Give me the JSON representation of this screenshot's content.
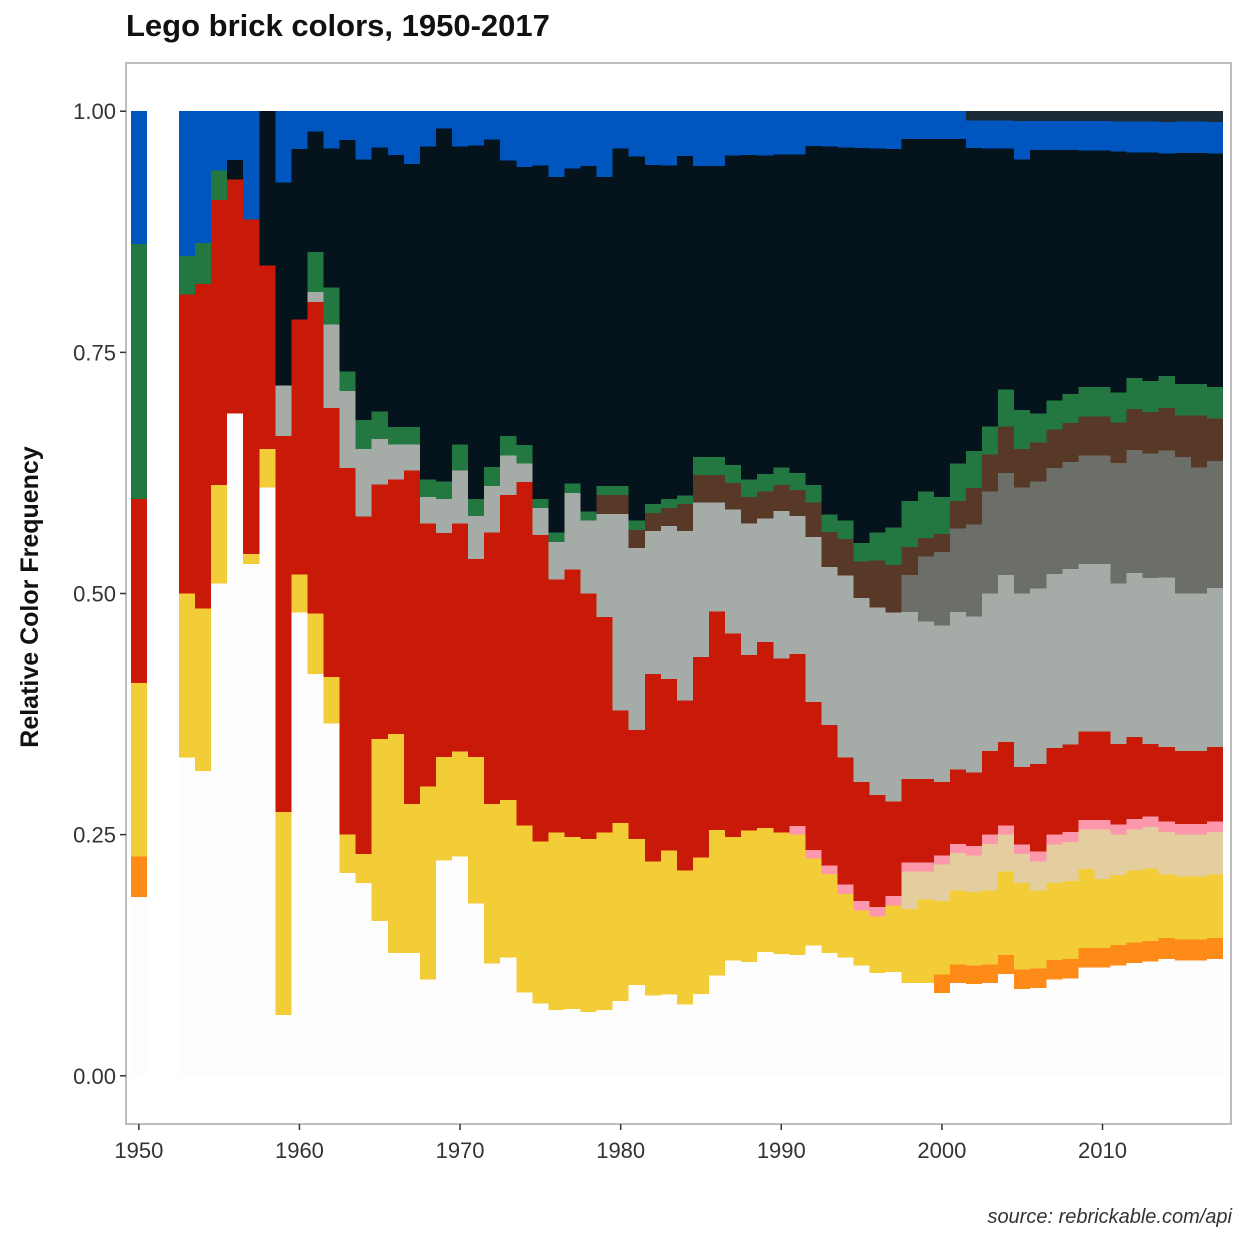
{
  "chart_data": {
    "type": "area",
    "subtype": "stacked step area, normalized to 1",
    "title": "Lego brick colors, 1950-2017",
    "caption": "source: rebrickable.com/api",
    "xlabel": "",
    "ylabel": "Relative Color Frequency",
    "xlim": [
      1949.2,
      2018
    ],
    "ylim": [
      -0.05,
      1.05
    ],
    "x_ticks": [
      1950,
      1960,
      1970,
      1980,
      1990,
      2000,
      2010
    ],
    "y_ticks": [
      0.0,
      0.25,
      0.5,
      0.75,
      1.0
    ],
    "y_tick_labels": [
      "0.00",
      "0.25",
      "0.50",
      "0.75",
      "1.00"
    ],
    "grid": false,
    "legend": "none",
    "x": [
      1950,
      1953,
      1954,
      1955,
      1956,
      1957,
      1958,
      1959,
      1960,
      1961,
      1962,
      1963,
      1964,
      1965,
      1966,
      1967,
      1968,
      1969,
      1970,
      1971,
      1972,
      1973,
      1974,
      1975,
      1976,
      1977,
      1978,
      1979,
      1980,
      1981,
      1982,
      1983,
      1984,
      1985,
      1986,
      1987,
      1988,
      1989,
      1990,
      1991,
      1992,
      1993,
      1994,
      1995,
      1996,
      1997,
      1998,
      1999,
      2000,
      2001,
      2002,
      2003,
      2004,
      2005,
      2006,
      2007,
      2008,
      2009,
      2010,
      2011,
      2012,
      2013,
      2014,
      2015,
      2016,
      2017
    ],
    "series": [
      {
        "color": "#FDFDFD",
        "values": [
          0.175,
          0.33,
          0.3,
          0.5,
          0.68,
          0.52,
          0.61,
          0.06,
          0.49,
          0.4,
          0.38,
          0.21,
          0.2,
          0.17,
          0.14,
          0.14,
          0.11,
          0.25,
          0.25,
          0.2,
          0.12,
          0.12,
          0.09,
          0.08,
          0.07,
          0.07,
          0.07,
          0.07,
          0.08,
          0.1,
          0.09,
          0.09,
          0.08,
          0.09,
          0.11,
          0.13,
          0.13,
          0.14,
          0.14,
          0.14,
          0.15,
          0.14,
          0.13,
          0.12,
          0.11,
          0.11,
          0.1,
          0.1,
          0.09,
          0.1,
          0.1,
          0.1,
          0.11,
          0.09,
          0.09,
          0.1,
          0.1,
          0.11,
          0.11,
          0.11,
          0.11,
          0.11,
          0.11,
          0.11,
          0.11,
          0.11
        ]
      },
      {
        "color": "#FE8A18",
        "values": [
          0.04,
          0,
          0,
          0,
          0,
          0,
          0,
          0,
          0,
          0,
          0,
          0,
          0,
          0,
          0,
          0,
          0,
          0,
          0,
          0,
          0,
          0,
          0,
          0,
          0,
          0,
          0,
          0,
          0,
          0,
          0,
          0,
          0,
          0,
          0,
          0,
          0,
          0,
          0,
          0,
          0,
          0,
          0,
          0,
          0,
          0,
          0,
          0,
          0.02,
          0.02,
          0.02,
          0.02,
          0.02,
          0.02,
          0.02,
          0.02,
          0.02,
          0.02,
          0.02,
          0.02,
          0.02,
          0.02,
          0.02,
          0.02,
          0.02,
          0.02
        ]
      },
      {
        "color": "#F2CD37",
        "values": [
          0.17,
          0.17,
          0.16,
          0.1,
          0,
          0.01,
          0.04,
          0.2,
          0.04,
          0.06,
          0.05,
          0.04,
          0.03,
          0.2,
          0.25,
          0.17,
          0.22,
          0.12,
          0.12,
          0.17,
          0.17,
          0.16,
          0.18,
          0.18,
          0.19,
          0.18,
          0.19,
          0.19,
          0.19,
          0.16,
          0.15,
          0.16,
          0.15,
          0.15,
          0.16,
          0.14,
          0.15,
          0.14,
          0.14,
          0.14,
          0.1,
          0.09,
          0.07,
          0.06,
          0.06,
          0.07,
          0.08,
          0.09,
          0.08,
          0.08,
          0.08,
          0.08,
          0.09,
          0.09,
          0.08,
          0.08,
          0.08,
          0.08,
          0.07,
          0.07,
          0.07,
          0.07,
          0.06,
          0.06,
          0.06,
          0.06
        ]
      },
      {
        "color": "#E4CD9E",
        "values": [
          0,
          0,
          0,
          0,
          0,
          0,
          0,
          0,
          0,
          0,
          0,
          0,
          0,
          0,
          0,
          0,
          0,
          0,
          0,
          0,
          0,
          0,
          0,
          0,
          0,
          0,
          0,
          0,
          0,
          0,
          0,
          0,
          0,
          0,
          0,
          0,
          0,
          0,
          0,
          0,
          0,
          0,
          0,
          0,
          0,
          0,
          0.04,
          0.03,
          0.04,
          0.04,
          0.04,
          0.05,
          0.04,
          0.03,
          0.03,
          0.04,
          0.04,
          0.04,
          0.05,
          0.04,
          0.04,
          0.04,
          0.04,
          0.04,
          0.04,
          0.04
        ]
      },
      {
        "color": "#FC97AC",
        "values": [
          0,
          0,
          0,
          0,
          0,
          0,
          0,
          0,
          0,
          0,
          0,
          0,
          0,
          0,
          0,
          0,
          0,
          0,
          0,
          0,
          0,
          0,
          0,
          0,
          0,
          0,
          0,
          0,
          0,
          0,
          0,
          0,
          0,
          0,
          0,
          0,
          0,
          0,
          0,
          0.01,
          0.01,
          0.01,
          0.01,
          0.01,
          0.01,
          0.01,
          0.01,
          0.01,
          0.01,
          0.01,
          0.01,
          0.01,
          0.01,
          0.01,
          0.01,
          0.01,
          0.01,
          0.01,
          0.01,
          0.01,
          0.01,
          0.01,
          0.01,
          0.01,
          0.01,
          0.01
        ]
      },
      {
        "color": "#C91A09",
        "values": [
          0.18,
          0.31,
          0.32,
          0.29,
          0.24,
          0.34,
          0.19,
          0.37,
          0.27,
          0.31,
          0.29,
          0.38,
          0.35,
          0.28,
          0.29,
          0.38,
          0.3,
          0.26,
          0.26,
          0.23,
          0.29,
          0.31,
          0.37,
          0.34,
          0.27,
          0.28,
          0.27,
          0.23,
          0.12,
          0.12,
          0.21,
          0.19,
          0.19,
          0.22,
          0.24,
          0.23,
          0.2,
          0.21,
          0.2,
          0.2,
          0.17,
          0.16,
          0.14,
          0.13,
          0.12,
          0.1,
          0.09,
          0.09,
          0.08,
          0.08,
          0.08,
          0.09,
          0.09,
          0.08,
          0.09,
          0.09,
          0.09,
          0.09,
          0.09,
          0.08,
          0.08,
          0.07,
          0.07,
          0.07,
          0.07,
          0.07
        ]
      },
      {
        "color": "#A5ACA8",
        "values": [
          0,
          0,
          0,
          0,
          0,
          0,
          0,
          0.05,
          0,
          0.01,
          0.09,
          0.08,
          0.07,
          0.05,
          0.04,
          0.03,
          0.03,
          0.04,
          0.06,
          0.05,
          0.05,
          0.04,
          0.02,
          0.03,
          0.04,
          0.08,
          0.08,
          0.11,
          0.21,
          0.2,
          0.16,
          0.17,
          0.19,
          0.17,
          0.12,
          0.14,
          0.15,
          0.14,
          0.17,
          0.16,
          0.19,
          0.18,
          0.2,
          0.2,
          0.2,
          0.2,
          0.18,
          0.17,
          0.17,
          0.17,
          0.17,
          0.17,
          0.18,
          0.18,
          0.18,
          0.18,
          0.18,
          0.17,
          0.17,
          0.16,
          0.16,
          0.16,
          0.16,
          0.15,
          0.15,
          0.15
        ]
      },
      {
        "color": "#6C6E68",
        "values": [
          0,
          0,
          0,
          0,
          0,
          0,
          0,
          0,
          0,
          0,
          0,
          0,
          0,
          0,
          0,
          0,
          0,
          0,
          0,
          0,
          0,
          0,
          0,
          0,
          0,
          0,
          0,
          0,
          0,
          0,
          0,
          0,
          0,
          0,
          0,
          0,
          0,
          0,
          0,
          0,
          0,
          0,
          0,
          0,
          0,
          0,
          0.04,
          0.07,
          0.08,
          0.09,
          0.1,
          0.11,
          0.11,
          0.11,
          0.11,
          0.11,
          0.11,
          0.11,
          0.11,
          0.12,
          0.12,
          0.12,
          0.12,
          0.13,
          0.12,
          0.12
        ]
      },
      {
        "color": "#583927",
        "values": [
          0,
          0,
          0,
          0,
          0,
          0,
          0,
          0,
          0,
          0,
          0,
          0,
          0,
          0,
          0,
          0,
          0,
          0,
          0,
          0,
          0,
          0,
          0,
          0,
          0,
          0,
          0,
          0.02,
          0.02,
          0.02,
          0.02,
          0.02,
          0.03,
          0.03,
          0.03,
          0.03,
          0.03,
          0.03,
          0.03,
          0.03,
          0.04,
          0.04,
          0.04,
          0.04,
          0.05,
          0.05,
          0.03,
          0.02,
          0.02,
          0.03,
          0.04,
          0.04,
          0.05,
          0.04,
          0.04,
          0.04,
          0.04,
          0.04,
          0.04,
          0.04,
          0.04,
          0.04,
          0.04,
          0.04,
          0.05,
          0.04
        ]
      },
      {
        "color": "#237841",
        "values": [
          0.25,
          0.04,
          0.04,
          0.03,
          0,
          0,
          0,
          0,
          0,
          0.04,
          0.04,
          0.02,
          0.03,
          0.03,
          0.02,
          0.02,
          0.02,
          0.02,
          0.03,
          0.02,
          0.02,
          0.02,
          0.02,
          0.01,
          0.01,
          0.01,
          0.01,
          0.01,
          0.01,
          0.01,
          0.01,
          0.01,
          0.01,
          0.02,
          0.02,
          0.02,
          0.02,
          0.02,
          0.02,
          0.02,
          0.02,
          0.02,
          0.02,
          0.02,
          0.03,
          0.04,
          0.05,
          0.05,
          0.04,
          0.04,
          0.04,
          0.03,
          0.04,
          0.04,
          0.03,
          0.03,
          0.03,
          0.03,
          0.03,
          0.03,
          0.03,
          0.03,
          0.03,
          0.03,
          0.03,
          0.03
        ]
      },
      {
        "color": "#05131D",
        "values": [
          0,
          0,
          0,
          0,
          0.02,
          0,
          0.16,
          0.2,
          0.18,
          0.12,
          0.15,
          0.24,
          0.27,
          0.29,
          0.31,
          0.3,
          0.38,
          0.41,
          0.34,
          0.41,
          0.35,
          0.28,
          0.3,
          0.37,
          0.38,
          0.33,
          0.38,
          0.33,
          0.36,
          0.4,
          0.38,
          0.37,
          0.38,
          0.32,
          0.32,
          0.35,
          0.37,
          0.36,
          0.36,
          0.37,
          0.39,
          0.42,
          0.41,
          0.43,
          0.41,
          0.4,
          0.39,
          0.38,
          0.39,
          0.35,
          0.33,
          0.3,
          0.26,
          0.26,
          0.27,
          0.26,
          0.25,
          0.24,
          0.24,
          0.24,
          0.22,
          0.22,
          0.21,
          0.22,
          0.22,
          0.22
        ]
      },
      {
        "color": "#0055BF",
        "values": [
          0.13,
          0.15,
          0.13,
          0.06,
          0.05,
          0.11,
          0,
          0.07,
          0.04,
          0.02,
          0.04,
          0.03,
          0.05,
          0.04,
          0.05,
          0.06,
          0.04,
          0.02,
          0.04,
          0.04,
          0.03,
          0.05,
          0.06,
          0.06,
          0.07,
          0.06,
          0.06,
          0.07,
          0.04,
          0.05,
          0.06,
          0.06,
          0.05,
          0.06,
          0.06,
          0.05,
          0.05,
          0.05,
          0.05,
          0.05,
          0.04,
          0.04,
          0.04,
          0.04,
          0.04,
          0.04,
          0.03,
          0.03,
          0.03,
          0.03,
          0.03,
          0.03,
          0.03,
          0.04,
          0.03,
          0.03,
          0.03,
          0.03,
          0.03,
          0.03,
          0.03,
          0.03,
          0.03,
          0.03,
          0.03,
          0.03
        ]
      },
      {
        "color": "#1B2A34",
        "values": [
          0,
          0,
          0,
          0,
          0,
          0,
          0,
          0,
          0,
          0,
          0,
          0,
          0,
          0,
          0,
          0,
          0,
          0,
          0,
          0,
          0,
          0,
          0,
          0,
          0,
          0,
          0,
          0,
          0,
          0,
          0,
          0,
          0,
          0,
          0,
          0,
          0,
          0,
          0,
          0,
          0,
          0,
          0,
          0,
          0,
          0,
          0,
          0,
          0,
          0,
          0.01,
          0.01,
          0.01,
          0.01,
          0.01,
          0.01,
          0.01,
          0.01,
          0.01,
          0.01,
          0.01,
          0.01,
          0.01,
          0.01,
          0.01,
          0.01
        ]
      }
    ]
  }
}
